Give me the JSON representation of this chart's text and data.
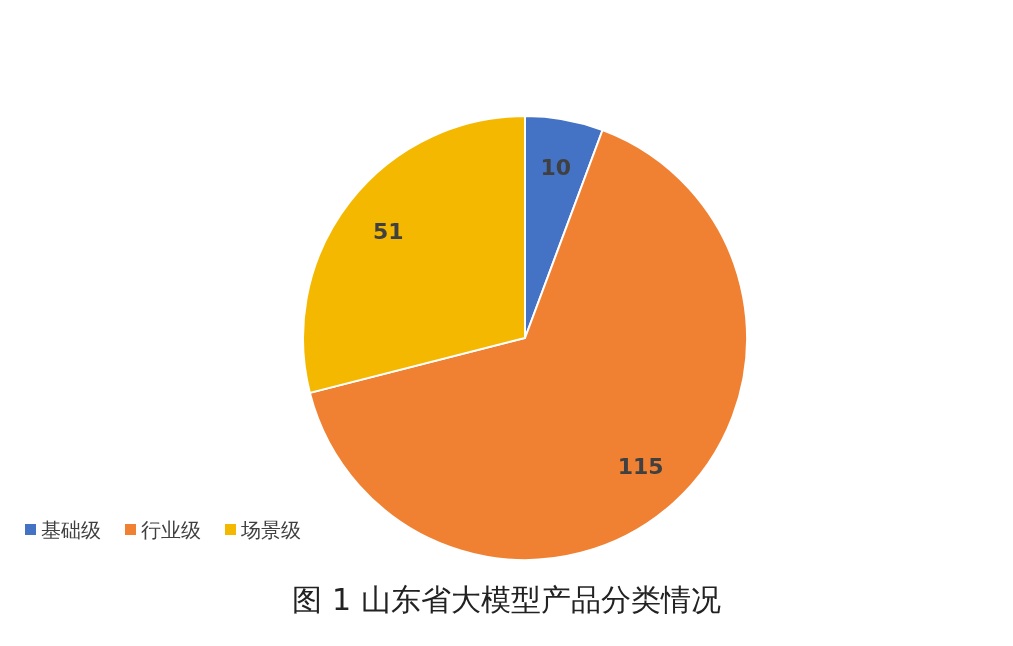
{
  "chart_data": {
    "type": "pie",
    "title": "图 1  山东省大模型产品分类情况",
    "categories": [
      "基础级",
      "行业级",
      "场景级"
    ],
    "values": [
      10,
      115,
      51
    ],
    "colors": [
      "#4472c4",
      "#f08133",
      "#f5b800"
    ],
    "data_labels": true,
    "legend": "bottom left"
  }
}
